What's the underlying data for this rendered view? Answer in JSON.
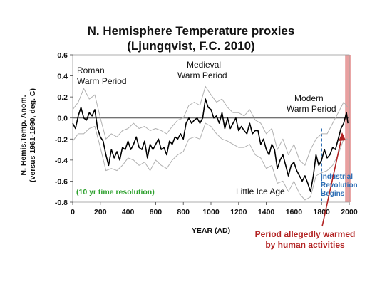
{
  "chart_data": {
    "type": "line",
    "title_line1": "N. Hemisphere Temperature proxies",
    "title_line2": "(Ljungqvist, F.C.  2010)",
    "xlabel": "YEAR (AD)",
    "ylabel_line1": "N. Hemis.Temp. Anom.",
    "ylabel_line2": "(versus 1961-1990, deg. C)",
    "xlim": [
      0,
      2000
    ],
    "ylim": [
      -0.8,
      0.6
    ],
    "xticks": [
      "0",
      "200",
      "400",
      "600",
      "800",
      "1000",
      "1200",
      "1400",
      "1600",
      "1800",
      "2000"
    ],
    "yticks": [
      "0.6",
      "0.4",
      "0.2",
      "0.0",
      "-0.2",
      "-0.4",
      "-0.6",
      "-0.8"
    ],
    "colors": {
      "mean_line": "#000000",
      "band_lines": "#b0b0b0",
      "industrial_marker": "#2e6fb5",
      "modern_shade": "#e8a0a0",
      "arrow": "#b22222"
    },
    "series": [
      {
        "role": "mean",
        "x": [
          0,
          20,
          40,
          60,
          80,
          100,
          120,
          140,
          160,
          180,
          200,
          220,
          240,
          260,
          280,
          300,
          320,
          340,
          360,
          380,
          400,
          420,
          440,
          460,
          480,
          500,
          520,
          540,
          560,
          580,
          600,
          620,
          640,
          660,
          680,
          700,
          720,
          740,
          760,
          780,
          800,
          820,
          840,
          860,
          880,
          900,
          920,
          940,
          960,
          980,
          1000,
          1020,
          1040,
          1060,
          1080,
          1100,
          1120,
          1140,
          1160,
          1180,
          1200,
          1220,
          1240,
          1260,
          1280,
          1300,
          1320,
          1340,
          1360,
          1380,
          1400,
          1420,
          1440,
          1460,
          1480,
          1500,
          1520,
          1540,
          1560,
          1580,
          1600,
          1620,
          1640,
          1660,
          1680,
          1700,
          1720,
          1740,
          1760,
          1780,
          1800,
          1820,
          1840,
          1860,
          1880,
          1900,
          1920,
          1940,
          1960,
          1980,
          1990
        ],
        "y": [
          -0.05,
          -0.1,
          0.02,
          0.1,
          0.0,
          -0.02,
          0.05,
          0.02,
          0.08,
          -0.1,
          -0.18,
          -0.22,
          -0.35,
          -0.45,
          -0.3,
          -0.38,
          -0.32,
          -0.4,
          -0.28,
          -0.3,
          -0.22,
          -0.3,
          -0.25,
          -0.18,
          -0.28,
          -0.3,
          -0.22,
          -0.38,
          -0.25,
          -0.3,
          -0.25,
          -0.2,
          -0.3,
          -0.28,
          -0.35,
          -0.22,
          -0.25,
          -0.18,
          -0.2,
          -0.15,
          -0.2,
          -0.05,
          0.0,
          -0.05,
          -0.02,
          0.0,
          -0.05,
          0.0,
          0.18,
          0.1,
          0.08,
          0.0,
          0.02,
          -0.05,
          0.05,
          -0.1,
          0.0,
          -0.1,
          -0.05,
          0.0,
          -0.12,
          -0.08,
          -0.12,
          -0.15,
          -0.05,
          -0.15,
          -0.12,
          -0.12,
          -0.25,
          -0.2,
          -0.3,
          -0.35,
          -0.25,
          -0.3,
          -0.48,
          -0.4,
          -0.35,
          -0.45,
          -0.55,
          -0.45,
          -0.42,
          -0.5,
          -0.55,
          -0.6,
          -0.55,
          -0.62,
          -0.7,
          -0.55,
          -0.35,
          -0.45,
          -0.4,
          -0.3,
          -0.38,
          -0.35,
          -0.28,
          -0.3,
          -0.2,
          -0.1,
          -0.05,
          0.05,
          -0.05
        ]
      },
      {
        "role": "upper",
        "x": [
          0,
          40,
          80,
          120,
          160,
          200,
          240,
          280,
          320,
          360,
          400,
          440,
          480,
          520,
          560,
          600,
          640,
          680,
          720,
          760,
          800,
          840,
          880,
          920,
          960,
          1000,
          1040,
          1080,
          1120,
          1160,
          1200,
          1240,
          1280,
          1320,
          1360,
          1400,
          1440,
          1480,
          1520,
          1560,
          1600,
          1640,
          1680,
          1720,
          1760,
          1800,
          1840,
          1880,
          1920,
          1960,
          1990
        ],
        "y": [
          0.08,
          0.15,
          0.28,
          0.18,
          0.22,
          0.0,
          -0.2,
          -0.15,
          -0.18,
          -0.12,
          -0.1,
          -0.05,
          -0.1,
          -0.08,
          -0.12,
          -0.1,
          -0.12,
          -0.15,
          -0.08,
          -0.02,
          0.0,
          0.12,
          0.15,
          0.12,
          0.3,
          0.22,
          0.15,
          0.18,
          0.1,
          0.05,
          0.05,
          0.02,
          0.08,
          -0.02,
          -0.05,
          -0.15,
          -0.1,
          -0.3,
          -0.2,
          -0.35,
          -0.25,
          -0.4,
          -0.45,
          -0.3,
          -0.2,
          -0.15,
          -0.15,
          -0.05,
          0.05,
          0.15,
          0.1
        ]
      },
      {
        "role": "lower",
        "x": [
          0,
          40,
          80,
          120,
          160,
          200,
          240,
          280,
          320,
          360,
          400,
          440,
          480,
          520,
          560,
          600,
          640,
          680,
          720,
          760,
          800,
          840,
          880,
          920,
          960,
          1000,
          1040,
          1080,
          1120,
          1160,
          1200,
          1240,
          1280,
          1320,
          1360,
          1400,
          1440,
          1480,
          1520,
          1560,
          1600,
          1640,
          1680,
          1720,
          1760,
          1800,
          1840,
          1880,
          1920,
          1960,
          1990
        ],
        "y": [
          -0.22,
          -0.15,
          -0.15,
          -0.1,
          -0.08,
          -0.28,
          -0.5,
          -0.48,
          -0.5,
          -0.45,
          -0.38,
          -0.4,
          -0.45,
          -0.42,
          -0.5,
          -0.4,
          -0.45,
          -0.48,
          -0.4,
          -0.35,
          -0.32,
          -0.2,
          -0.18,
          -0.2,
          -0.05,
          -0.08,
          -0.15,
          -0.2,
          -0.22,
          -0.25,
          -0.28,
          -0.28,
          -0.25,
          -0.35,
          -0.38,
          -0.48,
          -0.45,
          -0.62,
          -0.6,
          -0.7,
          -0.6,
          -0.72,
          -0.78,
          -0.75,
          -0.55,
          -0.52,
          -0.5,
          -0.45,
          -0.35,
          -0.2,
          -0.2
        ]
      }
    ],
    "industrial_revolution_year": 1800,
    "modern_shade_range": [
      1970,
      2010
    ],
    "annotations": {
      "roman_1": "Roman",
      "roman_2": "Warm Period",
      "medieval_1": "Medieval",
      "medieval_2": "Warm Period",
      "modern_1": "Modern",
      "modern_2": "Warm Period",
      "little_ice_age": "Little Ice Age",
      "resolution": "(10 yr time resolution)",
      "industrial_1": "Industrial",
      "industrial_2": "Revolution",
      "industrial_3": "Begins",
      "warmed_1": "Period allegedly warmed",
      "warmed_2": "by human activities"
    }
  }
}
